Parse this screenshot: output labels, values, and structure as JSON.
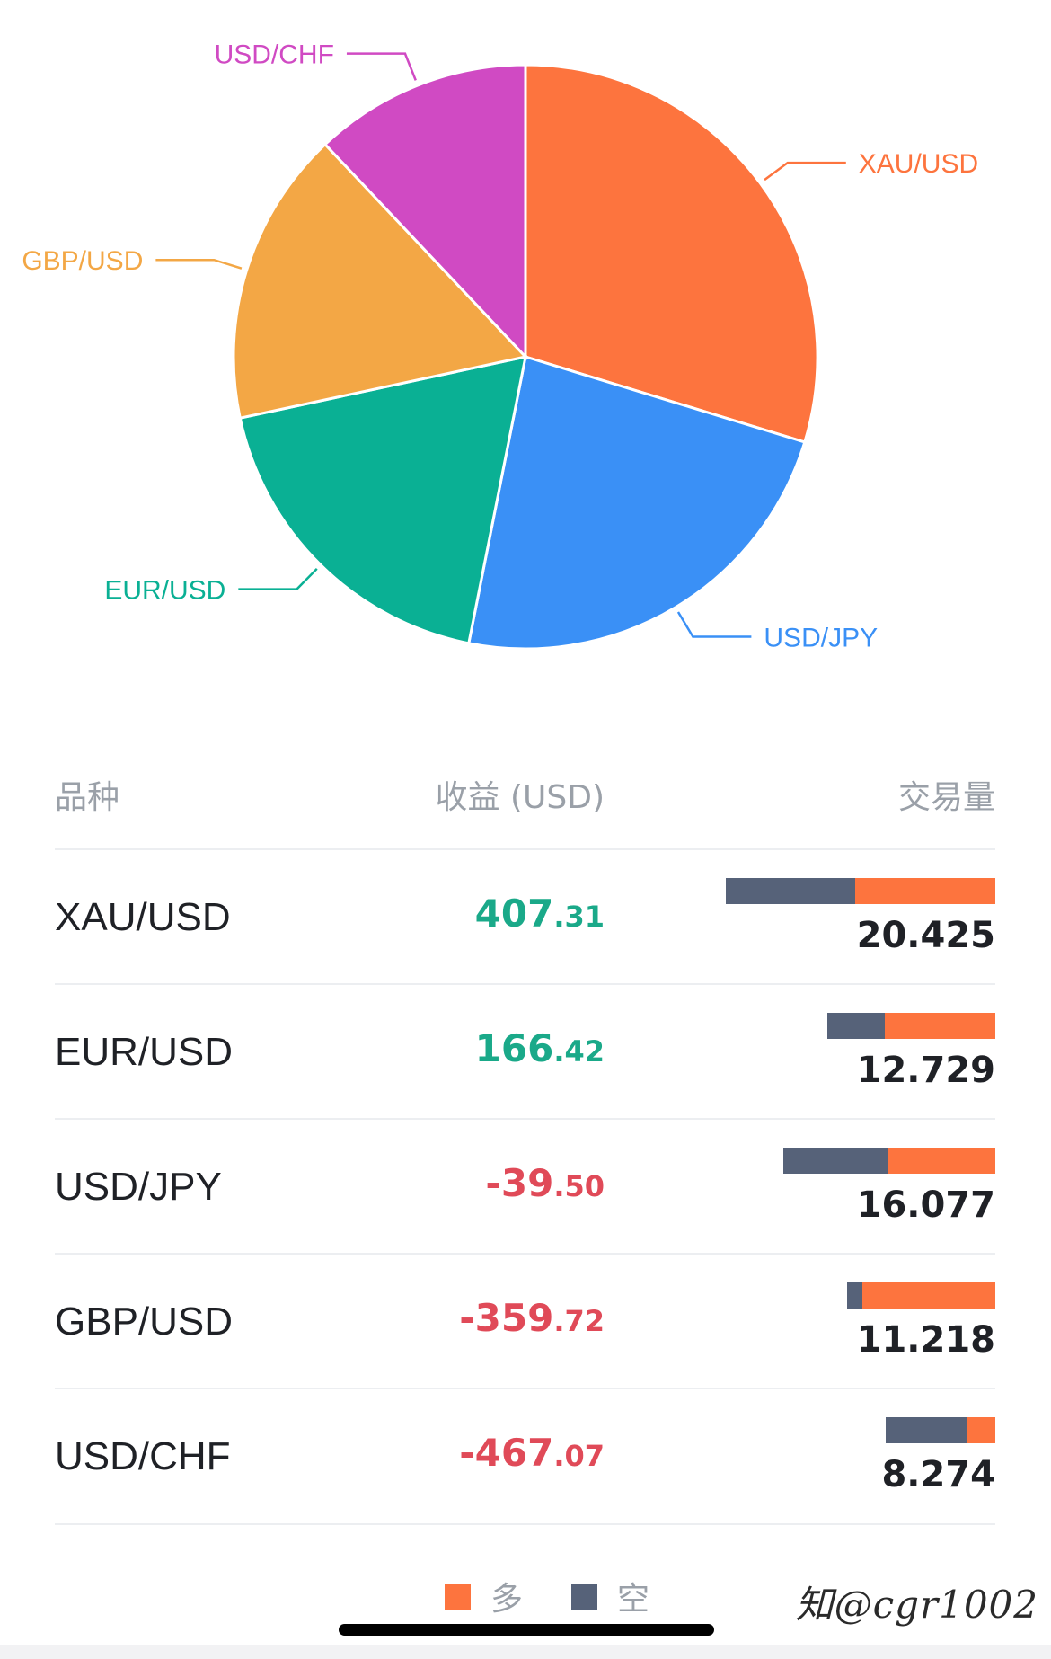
{
  "colors": {
    "long": "#fd743e",
    "short": "#566279",
    "positive": "#1aa989",
    "negative": "#e04a58"
  },
  "chart_data": {
    "type": "pie",
    "slices": [
      {
        "label": "XAU/USD",
        "value": 20.425,
        "color": "#fd743e"
      },
      {
        "label": "USD/JPY",
        "value": 16.077,
        "color": "#3a90f6"
      },
      {
        "label": "EUR/USD",
        "value": 12.729,
        "color": "#0ab094"
      },
      {
        "label": "GBP/USD",
        "value": 11.218,
        "color": "#f3a745"
      },
      {
        "label": "USD/CHF",
        "value": 8.274,
        "color": "#d04ac3"
      }
    ]
  },
  "table": {
    "headers": {
      "symbol": "品种",
      "profit": "收益 (USD)",
      "volume": "交易量"
    },
    "rows": [
      {
        "symbol": "XAU/USD",
        "profit_int": "407",
        "profit_dec": ".31",
        "sign": "pos",
        "volume": "20.425",
        "long_fraction": 0.52
      },
      {
        "symbol": "EUR/USD",
        "profit_int": "166",
        "profit_dec": ".42",
        "sign": "pos",
        "volume": "12.729",
        "long_fraction": 0.66
      },
      {
        "symbol": "USD/JPY",
        "profit_int": "-39",
        "profit_dec": ".50",
        "sign": "neg",
        "volume": "16.077",
        "long_fraction": 0.51
      },
      {
        "symbol": "GBP/USD",
        "profit_int": "-359",
        "profit_dec": ".72",
        "sign": "neg",
        "volume": "11.218",
        "long_fraction": 0.9
      },
      {
        "symbol": "USD/CHF",
        "profit_int": "-467",
        "profit_dec": ".07",
        "sign": "neg",
        "volume": "8.274",
        "long_fraction": 0.26
      }
    ]
  },
  "legend": {
    "long_label": "多",
    "short_label": "空"
  },
  "watermark": "知@cgr1002"
}
